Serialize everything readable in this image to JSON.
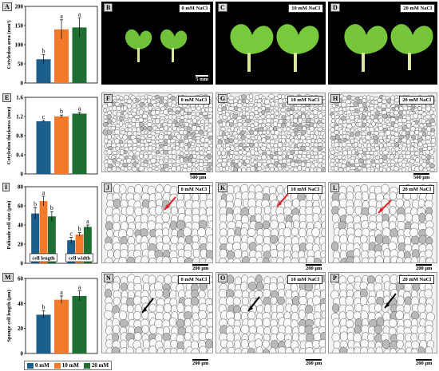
{
  "colors": {
    "c0": "#1b5f8c",
    "c10": "#f27a2a",
    "c20": "#1f6f34"
  },
  "panels": {
    "A": "A",
    "B": "B",
    "C": "C",
    "D": "D",
    "E": "E",
    "F": "F",
    "G": "G",
    "H": "H",
    "I": "I",
    "J": "J",
    "K": "K",
    "L": "L",
    "M": "M",
    "N": "N",
    "O": "O",
    "P": "P"
  },
  "tags": {
    "t0": "0 mM NaCl",
    "t10": "10 mM NaCl",
    "t20": "20 mM NaCl"
  },
  "scales": {
    "s5": "5 mm",
    "s500": "500 μm",
    "s200": "200 μm"
  },
  "legend": {
    "l0": "0 mM",
    "l10": "10 mM",
    "l20": "20 mM"
  },
  "chart_data": [
    {
      "type": "bar",
      "panel": "A",
      "ylabel": "Cotyledon area (mm²)",
      "ylim": [
        0,
        200
      ],
      "yticks": [
        0,
        50,
        100,
        150,
        200
      ],
      "categories": [
        "0 mM",
        "10 mM",
        "20 mM"
      ],
      "values": [
        62,
        140,
        145
      ],
      "errors": [
        12,
        25,
        25
      ],
      "letters": [
        "b",
        "a",
        "a"
      ]
    },
    {
      "type": "bar",
      "panel": "E",
      "ylabel": "Cotyledon thickness (mm)",
      "ylim": [
        0,
        1.6
      ],
      "yticks": [
        0,
        0.4,
        0.8,
        1.2,
        1.6
      ],
      "categories": [
        "0 mM",
        "10 mM",
        "20 mM"
      ],
      "values": [
        1.1,
        1.2,
        1.26
      ],
      "errors": [
        0.02,
        0.03,
        0.03
      ],
      "letters": [
        "c",
        "b",
        "a"
      ]
    },
    {
      "type": "bar",
      "panel": "I",
      "ylabel": "Palisade cell size (μm)",
      "ylim": [
        0,
        80
      ],
      "yticks": [
        0,
        20,
        40,
        60,
        80
      ],
      "groups": [
        "cell length",
        "cell width"
      ],
      "series": [
        {
          "name": "0 mM",
          "values": [
            52,
            24
          ],
          "errors": [
            6,
            3
          ],
          "letters": [
            "b",
            "c"
          ]
        },
        {
          "name": "10 mM",
          "values": [
            65,
            30
          ],
          "errors": [
            5,
            2
          ],
          "letters": [
            "a",
            "b"
          ]
        },
        {
          "name": "20 mM",
          "values": [
            49,
            38
          ],
          "errors": [
            5,
            2
          ],
          "letters": [
            "b",
            "a"
          ]
        }
      ]
    },
    {
      "type": "bar",
      "panel": "M",
      "ylabel": "Sponge cell length (μm)",
      "ylim": [
        0,
        60
      ],
      "yticks": [
        0,
        20,
        40,
        60
      ],
      "categories": [
        "0 mM",
        "10 mM",
        "20 mM"
      ],
      "values": [
        31,
        43,
        46
      ],
      "errors": [
        3,
        3,
        4
      ],
      "letters": [
        "b",
        "a",
        "a"
      ]
    }
  ]
}
